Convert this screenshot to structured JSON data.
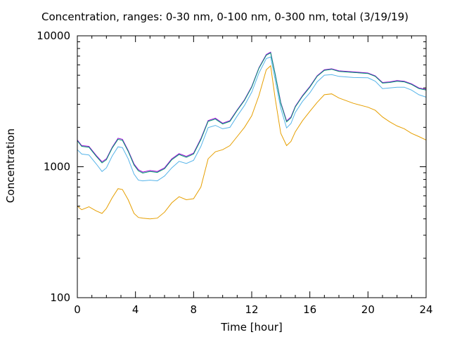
{
  "chart_data": {
    "type": "line",
    "title": "Concentration, ranges: 0-30 nm, 0-100 nm, 0-300 nm, total (3/19/19)",
    "xlabel": "Time [hour]",
    "ylabel": "Concentration",
    "xlim": [
      0,
      24
    ],
    "ylim": [
      100,
      10000
    ],
    "yscale": "log",
    "grid": false,
    "legend": "none",
    "x_ticks": [
      0,
      4,
      8,
      12,
      16,
      20,
      24
    ],
    "x_tick_labels": [
      "0",
      "4",
      "8",
      "12",
      "16",
      "20",
      "24"
    ],
    "y_ticks": [
      100,
      1000,
      10000
    ],
    "y_tick_labels": [
      "100",
      "1000",
      "10000"
    ],
    "x": [
      0,
      0.3,
      0.8,
      1.3,
      1.7,
      2.0,
      2.4,
      2.8,
      3.1,
      3.5,
      3.9,
      4.2,
      4.5,
      5.0,
      5.5,
      6.0,
      6.5,
      7.0,
      7.5,
      8.0,
      8.5,
      9.0,
      9.5,
      10.0,
      10.5,
      11.0,
      11.5,
      12.0,
      12.5,
      13.0,
      13.3,
      13.6,
      14.0,
      14.4,
      14.7,
      15.0,
      15.5,
      16.0,
      16.5,
      17.0,
      17.5,
      18.0,
      19.0,
      20.0,
      20.5,
      21.0,
      21.5,
      22.0,
      22.5,
      23.0,
      23.5,
      24.0
    ],
    "series": [
      {
        "color": "#9400d3",
        "values": [
          1600,
          1450,
          1430,
          1220,
          1090,
          1150,
          1410,
          1650,
          1620,
          1330,
          1050,
          950,
          910,
          935,
          920,
          980,
          1150,
          1260,
          1200,
          1270,
          1640,
          2250,
          2350,
          2150,
          2250,
          2720,
          3250,
          4100,
          5700,
          7200,
          7500,
          5200,
          3100,
          2240,
          2400,
          2900,
          3500,
          4100,
          4950,
          5500,
          5600,
          5400,
          5300,
          5200,
          4950,
          4400,
          4450,
          4550,
          4500,
          4300,
          4000,
          3900
        ]
      },
      {
        "color": "#009e73",
        "values": [
          1580,
          1430,
          1410,
          1200,
          1070,
          1130,
          1390,
          1620,
          1590,
          1310,
          1030,
          930,
          895,
          920,
          905,
          965,
          1130,
          1240,
          1180,
          1250,
          1610,
          2220,
          2310,
          2120,
          2220,
          2690,
          3210,
          4050,
          5650,
          7100,
          7400,
          5150,
          3050,
          2200,
          2360,
          2860,
          3460,
          4050,
          4900,
          5450,
          5550,
          5350,
          5250,
          5150,
          4900,
          4350,
          4400,
          4500,
          4450,
          4250,
          3950,
          3850
        ]
      },
      {
        "color": "#56b4e9",
        "values": [
          1350,
          1250,
          1230,
          1050,
          920,
          980,
          1210,
          1420,
          1400,
          1150,
          880,
          790,
          780,
          790,
          780,
          850,
          980,
          1100,
          1060,
          1120,
          1430,
          1990,
          2070,
          1950,
          2000,
          2440,
          2940,
          3710,
          5200,
          6700,
          6900,
          4700,
          2800,
          1980,
          2140,
          2600,
          3160,
          3670,
          4450,
          5000,
          5050,
          4900,
          4800,
          4780,
          4500,
          3950,
          4000,
          4050,
          4050,
          3850,
          3550,
          3400
        ]
      },
      {
        "color": "#e69f00",
        "values": [
          500,
          470,
          495,
          460,
          440,
          480,
          580,
          680,
          670,
          560,
          440,
          410,
          405,
          400,
          405,
          450,
          530,
          590,
          560,
          570,
          700,
          1150,
          1300,
          1350,
          1450,
          1700,
          2000,
          2450,
          3500,
          5500,
          5900,
          3400,
          1800,
          1450,
          1560,
          1850,
          2250,
          2650,
          3100,
          3550,
          3600,
          3350,
          3050,
          2850,
          2700,
          2400,
          2200,
          2050,
          1950,
          1800,
          1700,
          1600
        ]
      }
    ]
  }
}
